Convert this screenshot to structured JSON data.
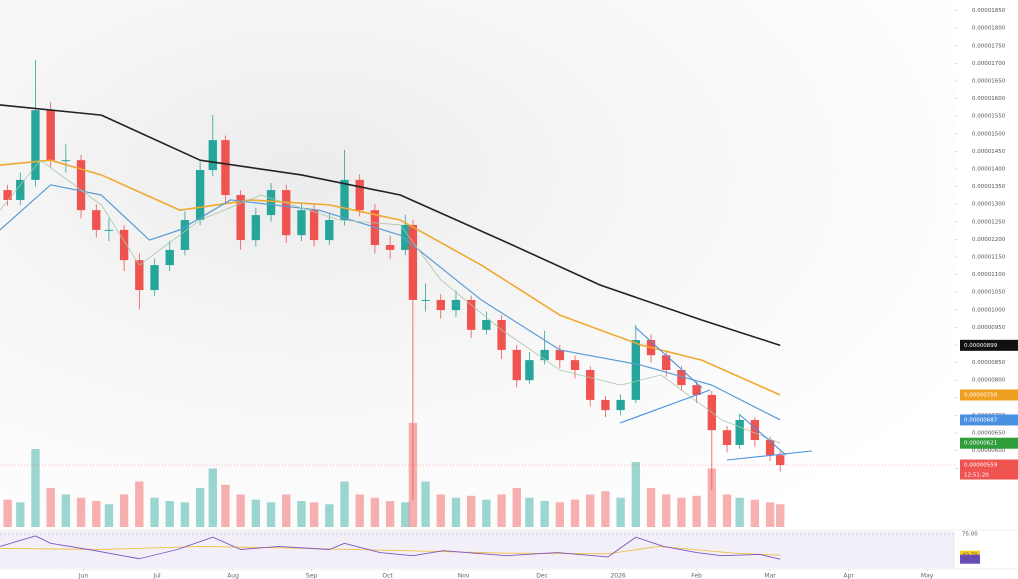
{
  "chart_data": {
    "type": "candlestick",
    "x": [
      3,
      8,
      14,
      20,
      26,
      32,
      38,
      43,
      49,
      55,
      61,
      67,
      73,
      79,
      84,
      89,
      95,
      101,
      107,
      113,
      119,
      124,
      130,
      136,
      142,
      148,
      154,
      160,
      163,
      168,
      174,
      180,
      186,
      192,
      198,
      204,
      209,
      215,
      221,
      227,
      233,
      239,
      245,
      251,
      257,
      263,
      269,
      275,
      281,
      287,
      292,
      298,
      304,
      308
    ],
    "open": [
      1.34e-05,
      1.312e-05,
      1.369e-05,
      1.567e-05,
      1.425e-05,
      1.425e-05,
      1.283e-05,
      1.227e-05,
      1.227e-05,
      1.141e-05,
      1.056e-05,
      1.127e-05,
      1.17e-05,
      1.255e-05,
      1.397e-05,
      1.482e-05,
      1.326e-05,
      1.198e-05,
      1.269e-05,
      1.34e-05,
      1.212e-05,
      1.283e-05,
      1.198e-05,
      1.255e-05,
      1.369e-05,
      1.283e-05,
      1.184e-05,
      1.17e-05,
      1.241e-05,
      1.028e-05,
      1.028e-05,
      9.99e-06,
      1.028e-05,
      9.43e-06,
      9.71e-06,
      8.86e-06,
      8e-06,
      8.57e-06,
      8.86e-06,
      8.57e-06,
      8.29e-06,
      7.44e-06,
      7.15e-06,
      7.44e-06,
      9.14e-06,
      8.71e-06,
      8.29e-06,
      7.86e-06,
      7.58e-06,
      6.58e-06,
      6.16e-06,
      6.87e-06,
      6.3e-06,
      5.87e-06
    ],
    "high": [
      1.355e-05,
      1.39e-05,
      1.71e-05,
      1.59e-05,
      1.47e-05,
      1.44e-05,
      1.3e-05,
      1.26e-05,
      1.24e-05,
      1.16e-05,
      1.145e-05,
      1.195e-05,
      1.28e-05,
      1.42e-05,
      1.553e-05,
      1.495e-05,
      1.34e-05,
      1.29e-05,
      1.36e-05,
      1.355e-05,
      1.305e-05,
      1.3e-05,
      1.275e-05,
      1.454e-05,
      1.385e-05,
      1.3e-05,
      1.21e-05,
      1.27e-05,
      1.255e-05,
      1.075e-05,
      1.045e-05,
      1.055e-05,
      1.04e-05,
      9.95e-06,
      9.85e-06,
      9e-06,
      8.8e-06,
      9.4e-06,
      9e-06,
      8.7e-06,
      8.4e-06,
      7.55e-06,
      7.6e-06,
      9.57e-06,
      9.3e-06,
      8.85e-06,
      8.4e-06,
      7.95e-06,
      7.7e-06,
      6.7e-06,
      7.05e-06,
      6.95e-06,
      6.4e-06,
      6e-06
    ],
    "low": [
      1.295e-05,
      1.298e-05,
      1.35e-05,
      1.405e-05,
      1.39e-05,
      1.26e-05,
      1.205e-05,
      1.195e-05,
      1.11e-05,
      1e-05,
      1.04e-05,
      1.11e-05,
      1.155e-05,
      1.24e-05,
      1.38e-05,
      1.305e-05,
      1.17e-05,
      1.18e-05,
      1.25e-05,
      1.19e-05,
      1.195e-05,
      1.18e-05,
      1.185e-05,
      1.24e-05,
      1.265e-05,
      1.16e-05,
      1.145e-05,
      1.155e-05,
      4.6e-06,
      9.95e-06,
      9.75e-06,
      9.8e-06,
      9.2e-06,
      9.3e-06,
      8.6e-06,
      7.8e-06,
      7.9e-06,
      8.45e-06,
      8.35e-06,
      8.05e-06,
      7.25e-06,
      6.95e-06,
      7e-06,
      7.35e-06,
      8.5e-06,
      8.1e-06,
      7.7e-06,
      7.35e-06,
      4.88e-06,
      5.95e-06,
      6.05e-06,
      6.1e-06,
      5.7e-06,
      5.4e-06
    ],
    "close": [
      1.312e-05,
      1.369e-05,
      1.567e-05,
      1.425e-05,
      1.425e-05,
      1.283e-05,
      1.227e-05,
      1.227e-05,
      1.141e-05,
      1.056e-05,
      1.127e-05,
      1.17e-05,
      1.255e-05,
      1.397e-05,
      1.482e-05,
      1.326e-05,
      1.198e-05,
      1.269e-05,
      1.34e-05,
      1.212e-05,
      1.283e-05,
      1.198e-05,
      1.255e-05,
      1.369e-05,
      1.283e-05,
      1.184e-05,
      1.17e-05,
      1.241e-05,
      1.028e-05,
      1.028e-05,
      9.99e-06,
      1.028e-05,
      9.43e-06,
      9.71e-06,
      8.86e-06,
      8e-06,
      8.57e-06,
      8.86e-06,
      8.57e-06,
      8.29e-06,
      7.44e-06,
      7.15e-06,
      7.44e-06,
      9.14e-06,
      8.71e-06,
      8.29e-06,
      7.86e-06,
      7.58e-06,
      6.58e-06,
      6.16e-06,
      6.87e-06,
      6.3e-06,
      5.87e-06,
      5.59e-06
    ],
    "volume": [
      420,
      380,
      1200,
      600,
      500,
      450,
      400,
      350,
      500,
      700,
      450,
      400,
      380,
      600,
      900,
      650,
      500,
      420,
      380,
      500,
      400,
      380,
      350,
      700,
      500,
      450,
      400,
      380,
      1600,
      700,
      500,
      450,
      480,
      420,
      500,
      600,
      450,
      400,
      380,
      420,
      500,
      550,
      450,
      1000,
      600,
      500,
      450,
      480,
      900,
      500,
      450,
      420,
      380,
      350
    ],
    "vlim": [
      0,
      2000
    ],
    "up_color": "#26a69a",
    "down_color": "#ef5350",
    "xlim": [
      0,
      377
    ],
    "xticks": [
      {
        "value": 33,
        "label": "Jun"
      },
      {
        "value": 62,
        "label": "Jul"
      },
      {
        "value": 92,
        "label": "Aug"
      },
      {
        "value": 123,
        "label": "Sep"
      },
      {
        "value": 153,
        "label": "Oct"
      },
      {
        "value": 183,
        "label": "Nov"
      },
      {
        "value": 214,
        "label": "Dec"
      },
      {
        "value": 244,
        "label": "2026"
      },
      {
        "value": 275,
        "label": "Feb"
      },
      {
        "value": 304,
        "label": "Mar"
      },
      {
        "value": 335,
        "label": "Apr"
      },
      {
        "value": 366,
        "label": "May"
      }
    ],
    "ylim": [
      4e-06,
      1.88e-05
    ],
    "yticks": [
      {
        "value": 1.85e-05,
        "label": "0.00001850"
      },
      {
        "value": 1.8e-05,
        "label": "0.00001800"
      },
      {
        "value": 1.75e-05,
        "label": "0.00001750"
      },
      {
        "value": 1.7e-05,
        "label": "0.00001700"
      },
      {
        "value": 1.65e-05,
        "label": "0.00001650"
      },
      {
        "value": 1.6e-05,
        "label": "0.00001600"
      },
      {
        "value": 1.55e-05,
        "label": "0.00001550"
      },
      {
        "value": 1.5e-05,
        "label": "0.00001500"
      },
      {
        "value": 1.45e-05,
        "label": "0.00001450"
      },
      {
        "value": 1.4e-05,
        "label": "0.00001400"
      },
      {
        "value": 1.35e-05,
        "label": "0.00001350"
      },
      {
        "value": 1.3e-05,
        "label": "0.00001300"
      },
      {
        "value": 1.25e-05,
        "label": "0.00001250"
      },
      {
        "value": 1.2e-05,
        "label": "0.00001200"
      },
      {
        "value": 1.15e-05,
        "label": "0.00001150"
      },
      {
        "value": 1.1e-05,
        "label": "0.00001100"
      },
      {
        "value": 1.05e-05,
        "label": "0.00001050"
      },
      {
        "value": 1e-05,
        "label": "0.00001000"
      },
      {
        "value": 9.5e-06,
        "label": "0.00000950"
      },
      {
        "value": 9e-06,
        "label": "0.00000900"
      },
      {
        "value": 8.5e-06,
        "label": "0.00000850"
      },
      {
        "value": 8e-06,
        "label": "0.00000800"
      },
      {
        "value": 7.5e-06,
        "label": "0.00000750"
      },
      {
        "value": 7e-06,
        "label": "0.00000700"
      },
      {
        "value": 6.5e-06,
        "label": "0.00000650"
      },
      {
        "value": 6e-06,
        "label": "0.00000600"
      },
      {
        "value": 5.5e-06,
        "label": "0.00000550"
      }
    ],
    "moving_averages": [
      {
        "color": "#222222",
        "tag_color": "#111111",
        "x": [
          0,
          40,
          79,
          119,
          158,
          198,
          237,
          277,
          308
        ],
        "values": [
          1.582e-05,
          1.553e-05,
          1.425e-05,
          1.383e-05,
          1.326e-05,
          1.198e-05,
          1.07e-05,
          9.71e-06,
          8.99e-06
        ]
      },
      {
        "color": "#f0a830",
        "tag_color": "#f0a020",
        "x": [
          0,
          20,
          40,
          71,
          99,
          130,
          158,
          190,
          221,
          253,
          277,
          308
        ],
        "values": [
          1.411e-05,
          1.425e-05,
          1.383e-05,
          1.283e-05,
          1.312e-05,
          1.298e-05,
          1.255e-05,
          1.127e-05,
          9.85e-06,
          9e-06,
          8.57e-06,
          7.58e-06
        ]
      },
      {
        "color": "#5b9bd5",
        "tag_color": "#4a90e2",
        "x": [
          0,
          20,
          40,
          59,
          71,
          91,
          126,
          158,
          190,
          221,
          253,
          281,
          308
        ],
        "values": [
          1.227e-05,
          1.355e-05,
          1.326e-05,
          1.198e-05,
          1.227e-05,
          1.312e-05,
          1.283e-05,
          1.212e-05,
          1.028e-05,
          8.86e-06,
          8.43e-06,
          7.86e-06,
          6.87e-06
        ]
      },
      {
        "color": "#a8c8a8",
        "tag_color": "#2e9d3a",
        "x": [
          0,
          16,
          40,
          55,
          79,
          103,
          134,
          158,
          174,
          198,
          221,
          245,
          261,
          285,
          308
        ],
        "values": [
          1.283e-05,
          1.425e-05,
          1.298e-05,
          1.127e-05,
          1.255e-05,
          1.326e-05,
          1.255e-05,
          1.241e-05,
          1.085e-05,
          9.43e-06,
          8.29e-06,
          7.86e-06,
          8.15e-06,
          6.87e-06,
          6.21e-06
        ]
      }
    ],
    "countdown": "12:51:20",
    "rsi": {
      "ylim": [
        20,
        80
      ],
      "yticks": [
        {
          "value": 75,
          "label": "75.00"
        }
      ],
      "series": [
        {
          "color": "#f0c040",
          "tag_color": "#f5d020",
          "x": [
            0,
            40,
            80,
            120,
            160,
            200,
            240,
            260,
            290,
            308
          ],
          "values": [
            52,
            50,
            55,
            52,
            48,
            44,
            43,
            55,
            44,
            40.79
          ]
        },
        {
          "color": "#7e57c2",
          "tag_color": "#6a4cc0",
          "x": [
            0,
            14,
            20,
            35,
            55,
            70,
            84,
            95,
            110,
            130,
            136,
            150,
            163,
            175,
            200,
            220,
            240,
            251,
            262,
            275,
            285,
            300,
            308
          ],
          "values": [
            55,
            72,
            60,
            50,
            35,
            50,
            70,
            50,
            55,
            50,
            60,
            45,
            40,
            48,
            40,
            45,
            38,
            70,
            55,
            45,
            40,
            42,
            34.21
          ]
        }
      ]
    }
  }
}
